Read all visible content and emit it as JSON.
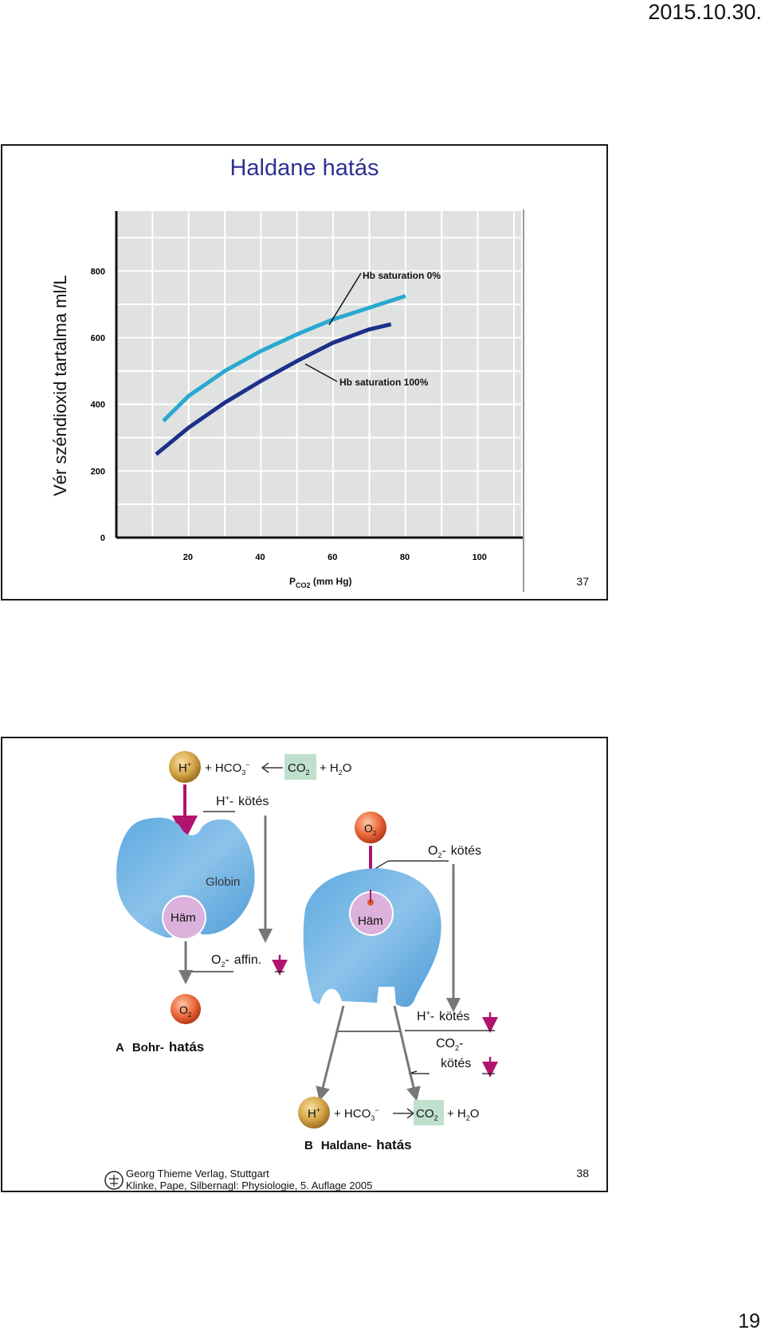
{
  "header": {
    "date": "2015.10.30."
  },
  "page_number": "19",
  "slide1": {
    "title": "Haldane hatás",
    "ylabel": "Vér széndioxid tartalma ml/L",
    "xlabel_main": "P",
    "xlabel_sub": "CO2",
    "xlabel_unit": " (mm Hg)",
    "slide_number": "37",
    "chart_data": {
      "type": "line",
      "x_ticks": [
        "20",
        "40",
        "60",
        "80",
        "100"
      ],
      "y_ticks": [
        "0",
        "200",
        "400",
        "600",
        "800"
      ],
      "xlim": [
        0,
        112
      ],
      "ylim": [
        0,
        980
      ],
      "grid": true,
      "series": [
        {
          "name": "Hb saturation 0%",
          "color": "#29a9cf",
          "x": [
            13,
            20,
            30,
            40,
            50,
            60,
            70,
            80
          ],
          "y": [
            350,
            425,
            500,
            560,
            610,
            655,
            690,
            725
          ]
        },
        {
          "name": "Hb saturation 100%",
          "color": "#1c2f8a",
          "x": [
            11,
            20,
            30,
            40,
            50,
            60,
            70,
            76
          ],
          "y": [
            250,
            330,
            405,
            470,
            530,
            585,
            625,
            640
          ]
        }
      ]
    }
  },
  "slide2": {
    "slide_number": "38",
    "top_eq": {
      "h": "H",
      "h_sup": "+",
      "hco3": "+ HCO",
      "hco3_sub": "3",
      "hco3_sup": "−",
      "co2": "CO",
      "co2_sub": "2",
      "h2o": "+ H",
      "h2o_sub": "2",
      "h2o_end": "O"
    },
    "h_binding": {
      "h": "H",
      "sup": "+",
      "dash": "-",
      "text": "kötés"
    },
    "globin": "Globin",
    "ham": "Häm",
    "o2_affin": {
      "o": "O",
      "sub": "2",
      "dash": "-",
      "text": "affin."
    },
    "o2_ball": {
      "o": "O",
      "sub": "2"
    },
    "label_a": {
      "letter": "A",
      "name": "Bohr-",
      "word": "hatás"
    },
    "o2_binding": {
      "o": "O",
      "sub": "2",
      "dash": "-",
      "text": "kötés"
    },
    "h_binding2": {
      "h": "H",
      "sup": "+",
      "dash": "-",
      "text": "kötés"
    },
    "co2_binding": {
      "co": "CO",
      "sub": "2",
      "dash": "-",
      "text": "kötés"
    },
    "bottom_eq": {
      "h": "H",
      "h_sup": "+",
      "hco3": "+ HCO",
      "hco3_sub": "3",
      "hco3_sup": "−",
      "co2": "CO",
      "co2_sub": "2",
      "h2o": "+ H",
      "h2o_sub": "2",
      "h2o_end": "O"
    },
    "label_b": {
      "letter": "B",
      "name": "Haldane-",
      "word": "hatás"
    },
    "credit_line1": "Georg Thieme Verlag, Stuttgart",
    "credit_line2": "Klinke, Pape, Silbernagl: Physiologie, 5. Auflage 2005"
  }
}
